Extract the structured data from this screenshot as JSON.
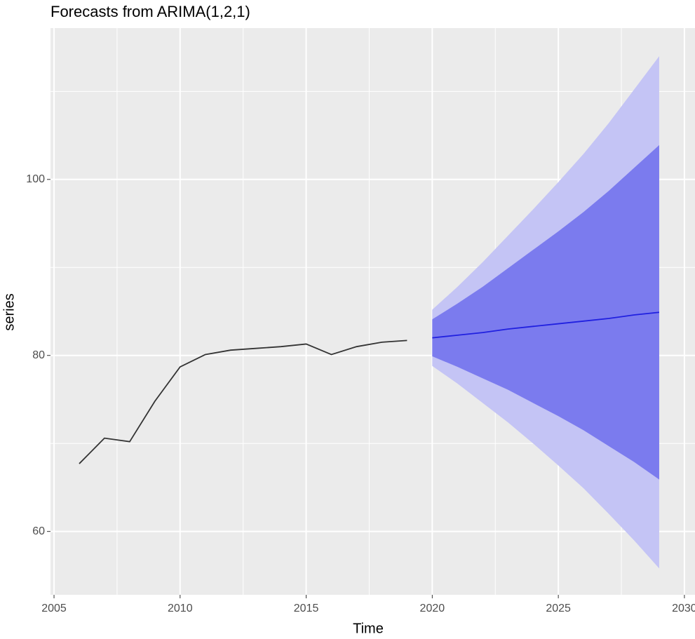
{
  "chart_data": {
    "type": "line",
    "title": "Forecasts from ARIMA(1,2,1)",
    "x_label": "Time",
    "y_label": "series",
    "xlim": [
      2004.86,
      2030.42
    ],
    "ylim": [
      52.8,
      117.2
    ],
    "xticks": [
      2005,
      2010,
      2015,
      2020,
      2025,
      2030
    ],
    "yticks": [
      60,
      80,
      100
    ],
    "x_minor_grid": [
      2007.5,
      2012.5,
      2017.5,
      2022.5,
      2027.5
    ],
    "y_minor_grid": [
      70,
      90,
      110
    ],
    "grid": true,
    "bands": [
      {
        "color": "#c4c4f5",
        "x": [
          2020,
          2021,
          2022,
          2023,
          2024,
          2025,
          2026,
          2027,
          2028,
          2029
        ],
        "lower": [
          78.8,
          76.8,
          74.6,
          72.4,
          70.0,
          67.5,
          64.9,
          62.0,
          59.0,
          55.8
        ],
        "upper": [
          85.2,
          87.8,
          90.6,
          93.6,
          96.6,
          99.7,
          102.9,
          106.4,
          110.2,
          114.0
        ]
      },
      {
        "color": "#7b7bee",
        "x": [
          2020,
          2021,
          2022,
          2023,
          2024,
          2025,
          2026,
          2027,
          2028,
          2029
        ],
        "lower": [
          79.9,
          78.7,
          77.4,
          76.1,
          74.6,
          73.1,
          71.5,
          69.7,
          67.9,
          65.9
        ],
        "upper": [
          84.1,
          85.9,
          87.8,
          89.9,
          92.0,
          94.1,
          96.3,
          98.7,
          101.3,
          103.9
        ]
      }
    ],
    "series": [
      {
        "color": "#333333",
        "x": [
          2006,
          2007,
          2008,
          2009,
          2010,
          2011,
          2012,
          2013,
          2014,
          2015,
          2016,
          2017,
          2018,
          2019
        ],
        "values": [
          67.7,
          70.6,
          70.2,
          74.8,
          78.7,
          80.1,
          80.6,
          80.8,
          81.0,
          81.3,
          80.1,
          81.0,
          81.5,
          81.7
        ]
      },
      {
        "color": "#2020e0",
        "x": [
          2020,
          2021,
          2022,
          2023,
          2024,
          2025,
          2026,
          2027,
          2028,
          2029
        ],
        "values": [
          82.0,
          82.3,
          82.6,
          83.0,
          83.3,
          83.6,
          83.9,
          84.2,
          84.6,
          84.9
        ]
      }
    ]
  }
}
